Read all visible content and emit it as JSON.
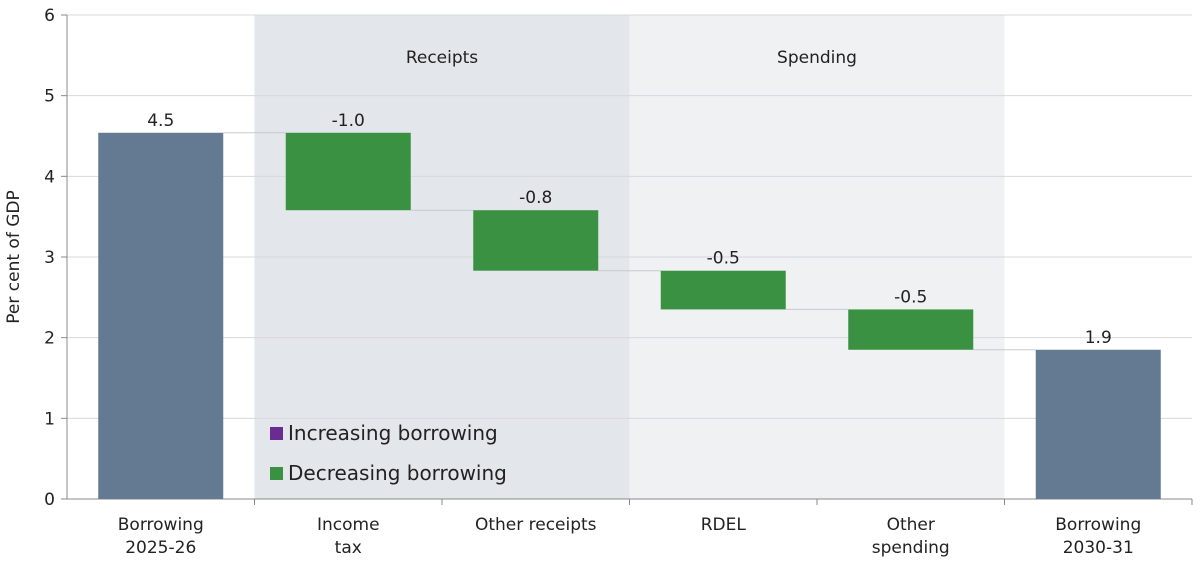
{
  "chart_data": {
    "type": "waterfall",
    "ylabel": "Per cent of GDP",
    "ylim": [
      0,
      6
    ],
    "yticks": [
      "0",
      "1",
      "2",
      "3",
      "4",
      "5",
      "6"
    ],
    "grid": true,
    "categories": [
      "Borrowing\n2025-26",
      "Income\ntax",
      "Other receipts",
      "RDEL",
      "Other\nspending",
      "Borrowing\n2030-31"
    ],
    "bars": [
      {
        "kind": "total",
        "start": 0,
        "end": 4.54,
        "label": "4.5"
      },
      {
        "kind": "decrease",
        "start": 4.54,
        "end": 3.58,
        "label": "-1.0"
      },
      {
        "kind": "decrease",
        "start": 3.58,
        "end": 2.83,
        "label": "-0.8"
      },
      {
        "kind": "decrease",
        "start": 2.83,
        "end": 2.35,
        "label": "-0.5"
      },
      {
        "kind": "decrease",
        "start": 2.35,
        "end": 1.85,
        "label": "-0.5"
      },
      {
        "kind": "total",
        "start": 0,
        "end": 1.85,
        "label": "1.9"
      }
    ],
    "regions": [
      {
        "label": "Receipts",
        "from_category": 1,
        "to_category": 2,
        "color": "#e3e6eb"
      },
      {
        "label": "Spending",
        "from_category": 3,
        "to_category": 4,
        "color": "#f0f1f3"
      }
    ],
    "legend": {
      "position": "bottom-left",
      "items": [
        {
          "label": "Increasing borrowing",
          "color": "#6a2c91"
        },
        {
          "label": "Decreasing borrowing",
          "color": "#3a9142"
        }
      ]
    },
    "colors": {
      "total": "#647a92",
      "decrease": "#3a9142",
      "increase": "#6a2c91"
    }
  }
}
